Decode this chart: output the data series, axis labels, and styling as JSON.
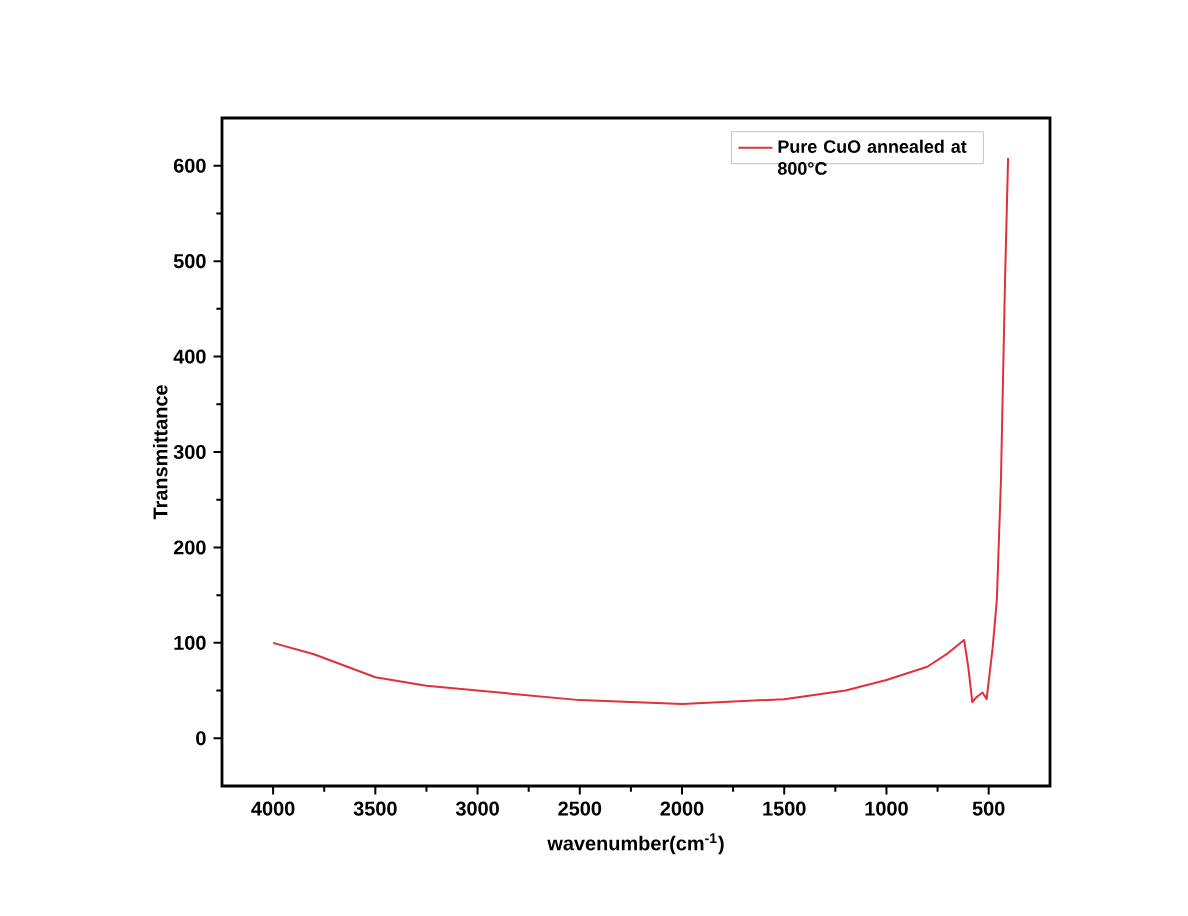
{
  "chart_data": {
    "type": "line",
    "xlabel": "wavenumber(cm$^{-1}$)",
    "ylabel": "Transmittance",
    "xlim": [
      4250,
      200
    ],
    "ylim": [
      -50,
      650
    ],
    "xticks": [
      500,
      1000,
      1500,
      2000,
      2500,
      3000,
      3500,
      4000
    ],
    "yticks": [
      0,
      100,
      200,
      300,
      400,
      500,
      600
    ],
    "legend": "top right",
    "grid": false,
    "marker": "none",
    "line_style": "solid",
    "series": [
      {
        "name": "Pure CuO annealed at 800°C",
        "color": "#e0303a",
        "x": [
          4000,
          3800,
          3500,
          3250,
          3000,
          2500,
          2000,
          1500,
          1200,
          1000,
          800,
          700,
          620,
          600,
          580,
          560,
          530,
          510,
          480,
          460,
          440,
          420,
          405
        ],
        "values": [
          100,
          88,
          64,
          55,
          50,
          40,
          36,
          41,
          50,
          61,
          75,
          89,
          103,
          75,
          38,
          43,
          48,
          41,
          96,
          145,
          270,
          480,
          608
        ]
      }
    ]
  }
}
